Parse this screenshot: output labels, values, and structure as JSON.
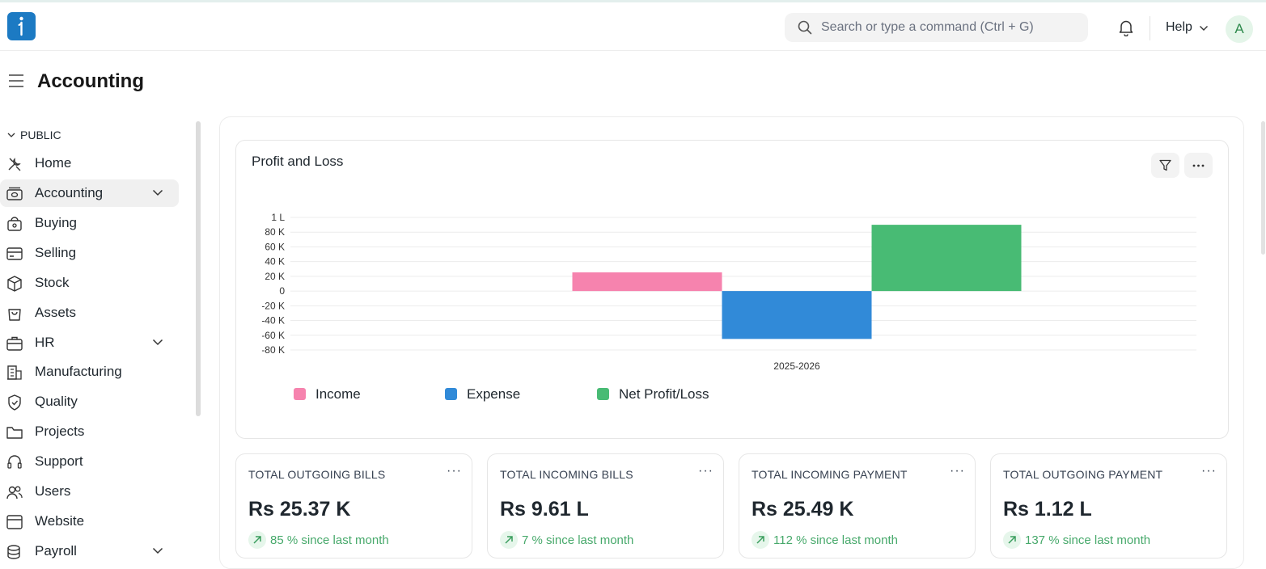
{
  "topbar": {
    "search_placeholder": "Search or type a command (Ctrl + G)",
    "help_label": "Help",
    "avatar_initial": "A"
  },
  "page": {
    "title": "Accounting"
  },
  "sidebar": {
    "section_label": "PUBLIC",
    "items": [
      {
        "label": "Home",
        "icon": "tools-icon",
        "active": false,
        "expandable": false
      },
      {
        "label": "Accounting",
        "icon": "accounting-icon",
        "active": true,
        "expandable": true
      },
      {
        "label": "Buying",
        "icon": "buying-icon",
        "active": false,
        "expandable": false
      },
      {
        "label": "Selling",
        "icon": "selling-icon",
        "active": false,
        "expandable": false
      },
      {
        "label": "Stock",
        "icon": "box-icon",
        "active": false,
        "expandable": false
      },
      {
        "label": "Assets",
        "icon": "assets-icon",
        "active": false,
        "expandable": false
      },
      {
        "label": "HR",
        "icon": "briefcase-icon",
        "active": false,
        "expandable": true
      },
      {
        "label": "Manufacturing",
        "icon": "building-icon",
        "active": false,
        "expandable": false
      },
      {
        "label": "Quality",
        "icon": "shield-icon",
        "active": false,
        "expandable": false
      },
      {
        "label": "Projects",
        "icon": "folder-icon",
        "active": false,
        "expandable": false
      },
      {
        "label": "Support",
        "icon": "headset-icon",
        "active": false,
        "expandable": false
      },
      {
        "label": "Users",
        "icon": "users-icon",
        "active": false,
        "expandable": false
      },
      {
        "label": "Website",
        "icon": "browser-icon",
        "active": false,
        "expandable": false
      },
      {
        "label": "Payroll",
        "icon": "coins-icon",
        "active": false,
        "expandable": true
      }
    ]
  },
  "chart_card": {
    "title": "Profit and Loss"
  },
  "chart_data": {
    "type": "bar",
    "categories": [
      "2025-2026"
    ],
    "series": [
      {
        "name": "Income",
        "values": [
          25370
        ],
        "color": "#f683ae"
      },
      {
        "name": "Expense",
        "values": [
          -65000
        ],
        "color": "#318ad8"
      },
      {
        "name": "Net Profit/Loss",
        "values": [
          90000
        ],
        "color": "#48bb74"
      }
    ],
    "y_ticks": [
      {
        "value": 100000,
        "label": "1 L"
      },
      {
        "value": 80000,
        "label": "80 K"
      },
      {
        "value": 60000,
        "label": "60 K"
      },
      {
        "value": 40000,
        "label": "40 K"
      },
      {
        "value": 20000,
        "label": "20 K"
      },
      {
        "value": 0,
        "label": "0"
      },
      {
        "value": -20000,
        "label": "-20 K"
      },
      {
        "value": -40000,
        "label": "-40 K"
      },
      {
        "value": -60000,
        "label": "-60 K"
      },
      {
        "value": -80000,
        "label": "-80 K"
      }
    ],
    "ylim": [
      -80000,
      100000
    ],
    "grid": true,
    "legend_position": "bottom-left"
  },
  "stats": [
    {
      "title": "TOTAL OUTGOING BILLS",
      "value": "Rs 25.37 K",
      "trend": "85 % since last month"
    },
    {
      "title": "TOTAL INCOMING BILLS",
      "value": "Rs 9.61 L",
      "trend": "7 % since last month"
    },
    {
      "title": "TOTAL INCOMING PAYMENT",
      "value": "Rs 25.49 K",
      "trend": "112 % since last month"
    },
    {
      "title": "TOTAL OUTGOING PAYMENT",
      "value": "Rs 1.12 L",
      "trend": "137 % since last month"
    }
  ]
}
